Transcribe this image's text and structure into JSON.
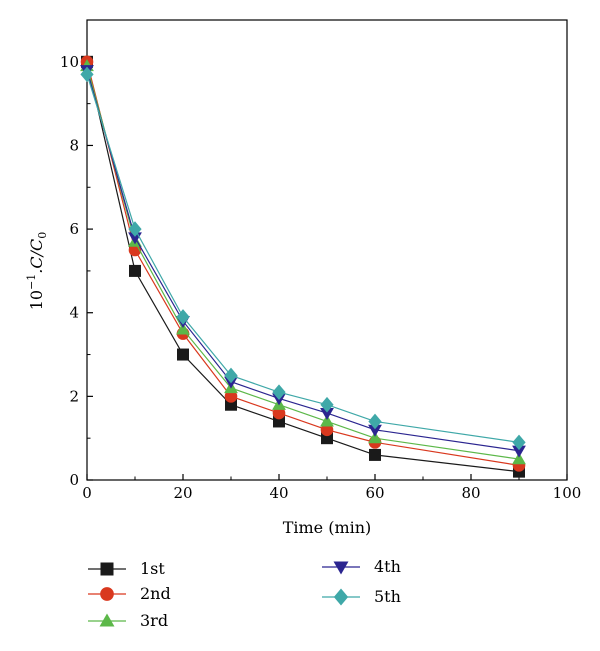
{
  "chart_data": {
    "type": "line",
    "xlabel": "Time (min)",
    "ylabel_base": "10",
    "ylabel_exp": "−1",
    "ylabel_rest": ".C/C",
    "ylabel_sub": "0",
    "xlim": [
      0,
      100
    ],
    "ylim": [
      0,
      11
    ],
    "xticks": [
      0,
      20,
      40,
      60,
      80,
      100
    ],
    "yticks": [
      0,
      2,
      4,
      6,
      8,
      10
    ],
    "grid": false,
    "legend_placement": "bottom",
    "x": [
      0,
      10,
      20,
      30,
      40,
      50,
      60,
      90
    ],
    "series": [
      {
        "name": "1st",
        "marker": "square",
        "color": "#1a1a1a",
        "values": [
          10.0,
          5.0,
          3.0,
          1.8,
          1.4,
          1.0,
          0.6,
          0.2
        ]
      },
      {
        "name": "2nd",
        "marker": "circle",
        "color": "#d9381e",
        "values": [
          10.0,
          5.5,
          3.5,
          2.0,
          1.6,
          1.2,
          0.9,
          0.35
        ]
      },
      {
        "name": "3rd",
        "marker": "triangle-up",
        "color": "#5cb849",
        "values": [
          9.9,
          5.7,
          3.6,
          2.2,
          1.8,
          1.4,
          1.0,
          0.5
        ]
      },
      {
        "name": "4th",
        "marker": "triangle-down",
        "color": "#2b2590",
        "values": [
          9.8,
          5.8,
          3.8,
          2.35,
          1.95,
          1.6,
          1.2,
          0.7
        ]
      },
      {
        "name": "5th",
        "marker": "diamond",
        "color": "#3fa8a8",
        "values": [
          9.7,
          6.0,
          3.9,
          2.5,
          2.1,
          1.8,
          1.4,
          0.9
        ]
      }
    ]
  }
}
